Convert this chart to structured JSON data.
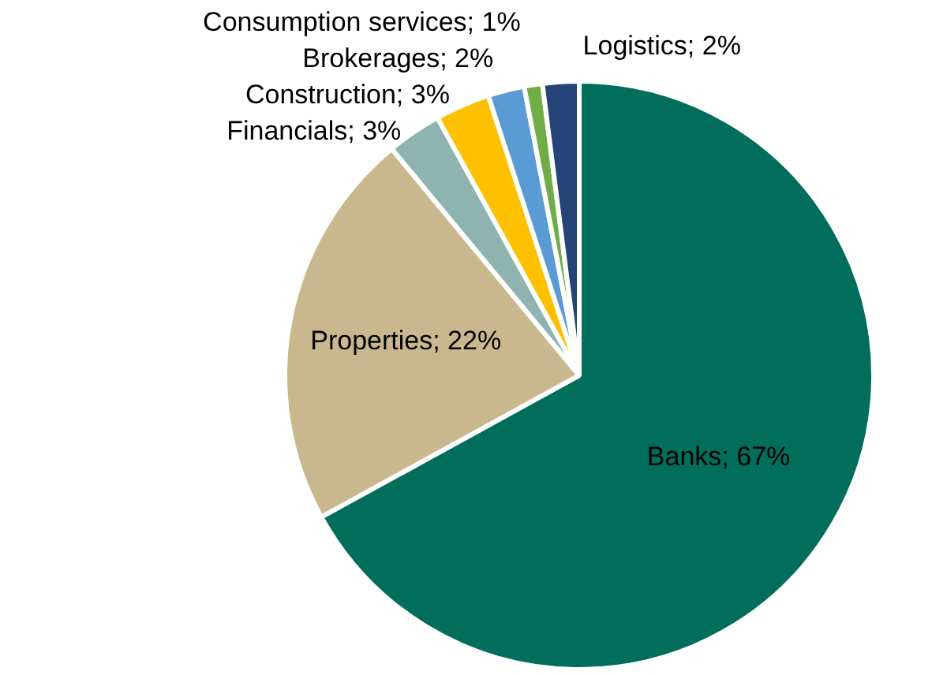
{
  "chart_data": {
    "type": "pie",
    "categories": [
      "Banks",
      "Properties",
      "Financials",
      "Construction",
      "Brokerages",
      "Consumption services",
      "Logistics"
    ],
    "values": [
      67,
      22,
      3,
      3,
      2,
      1,
      2
    ],
    "colors": [
      "#006e5a",
      "#c9b88e",
      "#8fb4b0",
      "#ffc000",
      "#5b9bd5",
      "#70ad47",
      "#264478"
    ],
    "value_labels": [
      "67%",
      "22%",
      "3%",
      "3%",
      "2%",
      "1%",
      "2%"
    ],
    "legend": false
  }
}
